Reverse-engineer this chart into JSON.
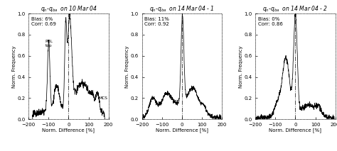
{
  "title_strs": [
    "q_n-q_ba  on 10 Mar 04",
    "q_n-q_ba  on 14 Mar 04 - 1",
    "q_n-q_ba  on 14 Mar 04 - 2"
  ],
  "xlabel": "Norm. Difference [%]",
  "ylabel": "Norm. Frequency",
  "xlim": [
    -200,
    200
  ],
  "ylim": [
    0.0,
    1.0
  ],
  "yticks": [
    0.0,
    0.2,
    0.4,
    0.6,
    0.8,
    1.0
  ],
  "xticks": [
    -200,
    -100,
    0,
    100,
    200
  ],
  "bias": [
    "6%",
    "11%",
    "0%"
  ],
  "corr": [
    "0.69",
    "0.92",
    "0.86"
  ],
  "vline_x": 0,
  "background_color": "#ffffff",
  "line_color": "#000000"
}
